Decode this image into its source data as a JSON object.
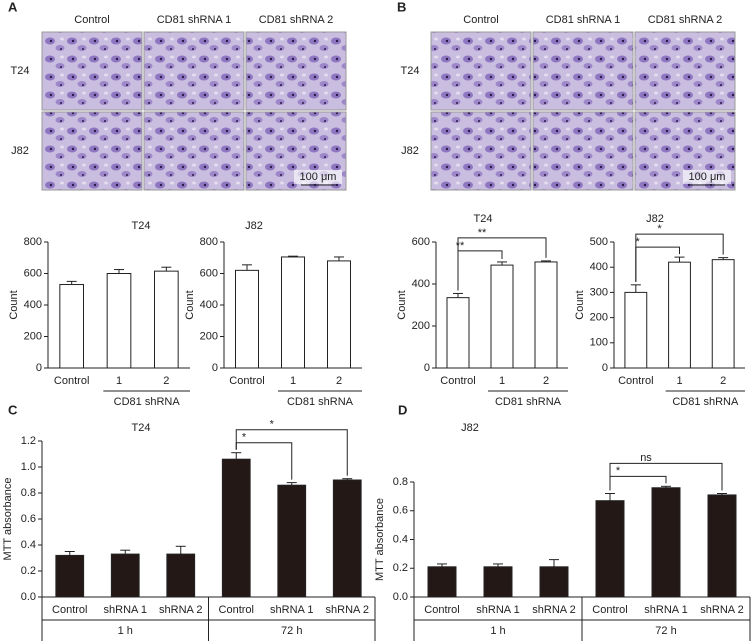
{
  "micrographs": [
    {
      "panel": "A",
      "columns": [
        "Control",
        "CD81 shRNA 1",
        "CD81 shRNA 2"
      ],
      "rows": [
        "T24",
        "J82"
      ],
      "scale_bar": "100 μm"
    },
    {
      "panel": "B",
      "columns": [
        "Control",
        "CD81 shRNA 1",
        "CD81 shRNA 2"
      ],
      "rows": [
        "T24",
        "J82"
      ],
      "scale_bar": "100 μm"
    }
  ],
  "chart_data": [
    {
      "type": "bar",
      "title": "T24",
      "y_label": "Count",
      "categories": [
        "Control",
        "1",
        "2"
      ],
      "values": [
        530,
        600,
        615
      ],
      "errors": [
        20,
        25,
        25
      ],
      "color": "#ffffff",
      "ylim": [
        0,
        800
      ],
      "yticks": [
        0,
        200,
        400,
        600,
        800
      ],
      "groups": [
        {
          "name": "CD81 shRNA",
          "span": [
            1,
            2
          ]
        }
      ],
      "groups_boxed": false
    },
    {
      "type": "bar",
      "title": "J82",
      "y_label": "Count",
      "categories": [
        "Control",
        "1",
        "2"
      ],
      "values": [
        620,
        705,
        680
      ],
      "errors": [
        35,
        5,
        25
      ],
      "color": "#ffffff",
      "ylim": [
        0,
        800
      ],
      "yticks": [
        0,
        200,
        400,
        600,
        800
      ],
      "groups": [
        {
          "name": "CD81 shRNA",
          "span": [
            1,
            2
          ]
        }
      ],
      "groups_boxed": false
    },
    {
      "type": "bar",
      "title": "T24",
      "y_label": "Count",
      "categories": [
        "Control",
        "1",
        "2"
      ],
      "values": [
        335,
        490,
        505
      ],
      "errors": [
        20,
        15,
        5
      ],
      "color": "#ffffff",
      "ylim": [
        0,
        600
      ],
      "yticks": [
        0,
        200,
        400,
        600
      ],
      "groups": [
        {
          "name": "CD81 shRNA",
          "span": [
            1,
            2
          ]
        }
      ],
      "groups_boxed": false,
      "significance": [
        {
          "span": [
            0,
            1
          ],
          "label": "**"
        },
        {
          "span": [
            0,
            2
          ],
          "label": "**"
        }
      ]
    },
    {
      "type": "bar",
      "title": "J82",
      "y_label": "Count",
      "categories": [
        "Control",
        "1",
        "2"
      ],
      "values": [
        300,
        420,
        430
      ],
      "errors": [
        30,
        20,
        8
      ],
      "color": "#ffffff",
      "ylim": [
        0,
        500
      ],
      "yticks": [
        0,
        100,
        200,
        300,
        400,
        500
      ],
      "groups": [
        {
          "name": "CD81 shRNA",
          "span": [
            1,
            2
          ]
        }
      ],
      "groups_boxed": false,
      "significance": [
        {
          "span": [
            0,
            1
          ],
          "label": "*"
        },
        {
          "span": [
            0,
            2
          ],
          "label": "*"
        }
      ]
    },
    {
      "type": "bar",
      "panel": "C",
      "title": "T24",
      "y_label": "MTT absorbance",
      "categories": [
        "Control",
        "shRNA 1",
        "shRNA 2",
        "Control",
        "shRNA 1",
        "shRNA 2"
      ],
      "values": [
        0.32,
        0.33,
        0.33,
        1.06,
        0.86,
        0.9
      ],
      "errors": [
        0.03,
        0.03,
        0.06,
        0.05,
        0.02,
        0.01
      ],
      "color": "#231815",
      "ylim": [
        0,
        1.2
      ],
      "yticks": [
        {
          "value": 0,
          "label": "0.0"
        },
        0.2,
        0.4,
        0.6,
        0.8,
        {
          "value": 1,
          "label": "1.0"
        },
        1.2
      ],
      "groups": [
        {
          "name": "1 h",
          "span": [
            0,
            2
          ]
        },
        {
          "name": "72 h",
          "span": [
            3,
            5
          ]
        }
      ],
      "groups_boxed": true,
      "significance": [
        {
          "span": [
            3,
            4
          ],
          "label": "*"
        },
        {
          "span": [
            3,
            5
          ],
          "label": "*"
        }
      ]
    },
    {
      "type": "bar",
      "panel": "D",
      "title": "J82",
      "y_label": "MTT absorbance",
      "categories": [
        "Control",
        "shRNA 1",
        "shRNA 2",
        "Control",
        "shRNA 1",
        "shRNA 2"
      ],
      "values": [
        0.21,
        0.21,
        0.21,
        0.67,
        0.76,
        0.71
      ],
      "errors": [
        0.02,
        0.02,
        0.05,
        0.05,
        0.01,
        0.01
      ],
      "color": "#231815",
      "ylim": [
        0,
        0.8
      ],
      "yticks": [
        {
          "value": 0,
          "label": "0.0"
        },
        0.2,
        0.4,
        0.6,
        0.8
      ],
      "groups": [
        {
          "name": "1 h",
          "span": [
            0,
            2
          ]
        },
        {
          "name": "72 h",
          "span": [
            3,
            5
          ]
        }
      ],
      "groups_boxed": true,
      "significance": [
        {
          "span": [
            3,
            4
          ],
          "label": "*"
        },
        {
          "span": [
            3,
            5
          ],
          "label": "ns"
        }
      ]
    }
  ]
}
